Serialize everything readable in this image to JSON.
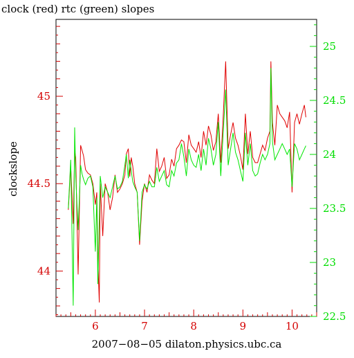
{
  "chart_data": {
    "type": "line",
    "title": "clock (red) rtc (green) slopes",
    "xlabel": "2007−08−05 dilaton.physics.ubc.ca",
    "ylabel": "clockslope",
    "xlim": [
      5.2,
      10.5
    ],
    "ylim_left": [
      43.74,
      45.44
    ],
    "ylim_right": [
      22.5,
      25.25
    ],
    "x_ticks": [
      6,
      7,
      8,
      9,
      10
    ],
    "y_ticks_left": [
      44,
      44.5,
      45
    ],
    "y_ticks_right": [
      22.5,
      23,
      23.5,
      24,
      24.5,
      25
    ],
    "grid": false,
    "colors": {
      "clock": "#e00000",
      "rtc": "#00e600",
      "axis_text_left": "#d40000",
      "axis_text_right": "#00dd00"
    },
    "series": [
      {
        "axis": "left",
        "color": "#e00000",
        "x": [
          5.45,
          5.5,
          5.55,
          5.58,
          5.6,
          5.65,
          5.7,
          5.73,
          5.76,
          5.8,
          5.85,
          5.9,
          5.95,
          6.0,
          6.03,
          6.05,
          6.08,
          6.1,
          6.15,
          6.2,
          6.25,
          6.3,
          6.35,
          6.4,
          6.45,
          6.5,
          6.55,
          6.6,
          6.63,
          6.67,
          6.7,
          6.73,
          6.76,
          6.8,
          6.85,
          6.9,
          6.95,
          7.0,
          7.05,
          7.1,
          7.15,
          7.2,
          7.25,
          7.3,
          7.35,
          7.4,
          7.45,
          7.5,
          7.55,
          7.6,
          7.65,
          7.7,
          7.75,
          7.8,
          7.85,
          7.9,
          7.95,
          8.0,
          8.05,
          8.1,
          8.15,
          8.2,
          8.25,
          8.3,
          8.35,
          8.4,
          8.45,
          8.5,
          8.55,
          8.6,
          8.65,
          8.7,
          8.75,
          8.8,
          8.85,
          8.9,
          8.95,
          9.0,
          9.05,
          9.1,
          9.15,
          9.2,
          9.25,
          9.3,
          9.35,
          9.4,
          9.45,
          9.5,
          9.55,
          9.57,
          9.6,
          9.65,
          9.7,
          9.75,
          9.8,
          9.85,
          9.9,
          9.95,
          10.0,
          10.05,
          10.1,
          10.15,
          10.2,
          10.25,
          10.28
        ],
        "y": [
          44.35,
          44.6,
          44.27,
          44.69,
          44.65,
          43.98,
          44.72,
          44.69,
          44.66,
          44.58,
          44.56,
          44.55,
          44.5,
          44.38,
          44.45,
          44.07,
          43.82,
          44.5,
          44.2,
          44.5,
          44.45,
          44.35,
          44.42,
          44.55,
          44.45,
          44.47,
          44.5,
          44.55,
          44.67,
          44.7,
          44.54,
          44.65,
          44.6,
          44.5,
          44.45,
          44.15,
          44.4,
          44.5,
          44.45,
          44.55,
          44.52,
          44.5,
          44.7,
          44.57,
          44.6,
          44.65,
          44.53,
          44.55,
          44.64,
          44.6,
          44.7,
          44.72,
          44.75,
          44.74,
          44.62,
          44.78,
          44.72,
          44.7,
          44.68,
          44.74,
          44.65,
          44.8,
          44.72,
          44.83,
          44.78,
          44.69,
          44.74,
          44.9,
          44.62,
          44.88,
          45.2,
          44.7,
          44.78,
          44.85,
          44.76,
          44.72,
          44.66,
          44.58,
          44.9,
          44.67,
          44.8,
          44.65,
          44.62,
          44.62,
          44.67,
          44.72,
          44.69,
          44.76,
          44.8,
          45.2,
          44.85,
          44.72,
          44.95,
          44.9,
          44.88,
          44.86,
          44.82,
          44.91,
          44.45,
          44.85,
          44.9,
          44.84,
          44.9,
          44.95,
          44.88
        ]
      },
      {
        "axis": "right",
        "color": "#00e600",
        "x": [
          5.45,
          5.5,
          5.55,
          5.58,
          5.6,
          5.65,
          5.7,
          5.73,
          5.76,
          5.8,
          5.85,
          5.9,
          5.95,
          6.0,
          6.03,
          6.05,
          6.08,
          6.1,
          6.15,
          6.2,
          6.25,
          6.3,
          6.35,
          6.4,
          6.45,
          6.5,
          6.55,
          6.6,
          6.63,
          6.67,
          6.7,
          6.73,
          6.76,
          6.8,
          6.85,
          6.9,
          6.95,
          7.0,
          7.05,
          7.1,
          7.15,
          7.2,
          7.25,
          7.3,
          7.35,
          7.4,
          7.45,
          7.5,
          7.55,
          7.6,
          7.65,
          7.7,
          7.75,
          7.8,
          7.85,
          7.9,
          7.95,
          8.0,
          8.05,
          8.1,
          8.15,
          8.2,
          8.25,
          8.3,
          8.35,
          8.4,
          8.45,
          8.5,
          8.55,
          8.6,
          8.65,
          8.7,
          8.75,
          8.8,
          8.85,
          8.9,
          8.95,
          9.0,
          9.05,
          9.1,
          9.15,
          9.2,
          9.25,
          9.3,
          9.35,
          9.4,
          9.45,
          9.5,
          9.55,
          9.57,
          9.6,
          9.65,
          9.7,
          9.75,
          9.8,
          9.85,
          9.9,
          9.95,
          10.0,
          10.05,
          10.1,
          10.15,
          10.2,
          10.25,
          10.28
        ],
        "y": [
          23.5,
          23.95,
          22.6,
          24.25,
          23.8,
          23.3,
          23.9,
          23.82,
          23.77,
          23.72,
          23.78,
          23.8,
          23.7,
          23.1,
          23.6,
          22.8,
          23.4,
          23.8,
          23.6,
          23.7,
          23.65,
          23.6,
          23.7,
          23.8,
          23.68,
          23.7,
          23.75,
          23.9,
          24.0,
          23.78,
          23.95,
          23.85,
          23.75,
          23.7,
          23.65,
          23.2,
          23.65,
          23.72,
          23.68,
          23.75,
          23.7,
          23.7,
          23.88,
          23.75,
          23.8,
          23.85,
          23.72,
          23.7,
          23.85,
          23.8,
          23.92,
          23.95,
          24.1,
          23.98,
          23.8,
          24.05,
          23.95,
          23.9,
          23.88,
          24.0,
          23.85,
          24.05,
          23.9,
          24.15,
          24.05,
          23.9,
          24.0,
          24.3,
          23.8,
          24.2,
          24.6,
          23.9,
          24.05,
          24.2,
          24.02,
          23.95,
          23.85,
          23.75,
          24.2,
          23.9,
          24.1,
          23.85,
          23.8,
          23.82,
          23.92,
          24.0,
          23.95,
          24.0,
          24.1,
          24.8,
          24.12,
          23.95,
          24.0,
          24.05,
          24.1,
          24.05,
          24.0,
          24.05,
          23.7,
          24.1,
          24.05,
          23.95,
          24.0,
          24.05,
          24.08
        ]
      }
    ]
  }
}
